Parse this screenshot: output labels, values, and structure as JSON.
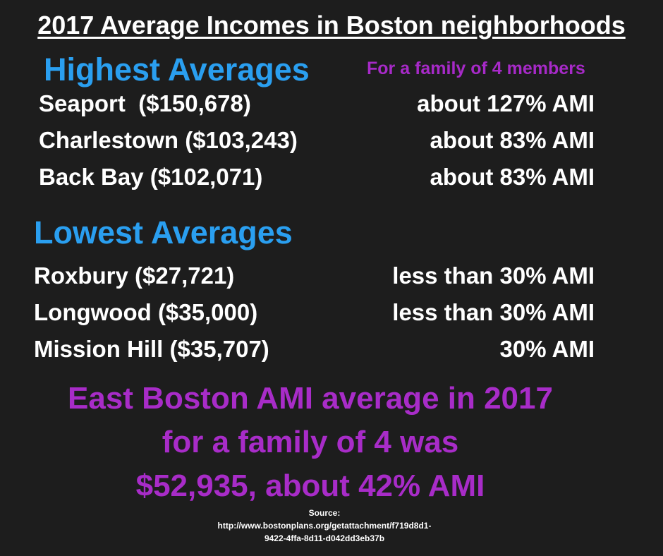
{
  "header": {
    "title": "2017 Average Incomes in Boston neighborhoods"
  },
  "highest": {
    "heading": "Highest Averages",
    "note": "For a family of 4 members",
    "rows": [
      [
        "Seaport  ($150,678)",
        "about 127% AMI"
      ],
      [
        "Charlestown ($103,243)",
        "about 83% AMI"
      ],
      [
        "Back Bay ($102,071)",
        "about 83% AMI"
      ]
    ]
  },
  "lowest": {
    "heading": "Lowest Averages",
    "rows": [
      [
        "Roxbury ($27,721)",
        "less than 30% AMI"
      ],
      [
        "Longwood ($35,000)",
        "less than 30% AMI"
      ],
      [
        "Mission Hill ($35,707)",
        "30% AMI"
      ]
    ]
  },
  "summary": [
    "East Boston AMI average in 2017",
    "for a family of 4 was",
    "$52,935, about 42% AMI"
  ],
  "source": [
    "Source:",
    "http://www.bostonplans.org/getattachment/f719d8d1-",
    "9422-4ffa-8d11-d042dd3eb37b"
  ]
}
